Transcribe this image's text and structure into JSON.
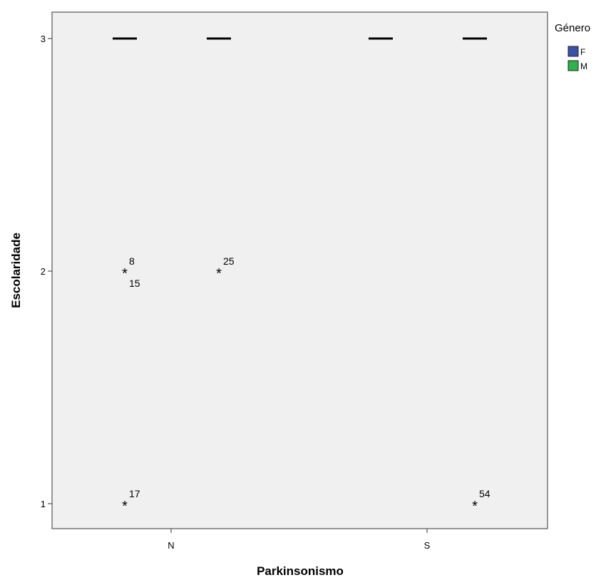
{
  "chart_data": {
    "type": "boxplot",
    "xlabel": "Parkinsonismo",
    "ylabel": "Escolaridade",
    "categories": [
      "N",
      "S"
    ],
    "yticks": [
      1,
      2,
      3
    ],
    "ylim": [
      0.9,
      3.12
    ],
    "grid": false,
    "legend": {
      "title": "Género",
      "position": "top-right",
      "entries": [
        {
          "name": "F",
          "color": "#3c52a8"
        },
        {
          "name": "M",
          "color": "#2eb24a"
        }
      ]
    },
    "groups": [
      {
        "category": "N",
        "series": "F",
        "median": 3,
        "outliers": [
          {
            "y": 2,
            "labels": [
              "8",
              "15"
            ]
          },
          {
            "y": 1,
            "labels": [
              "17"
            ]
          }
        ]
      },
      {
        "category": "N",
        "series": "M",
        "median": 3,
        "outliers": [
          {
            "y": 2,
            "labels": [
              "25"
            ]
          }
        ]
      },
      {
        "category": "S",
        "series": "F",
        "median": 3,
        "outliers": []
      },
      {
        "category": "S",
        "series": "M",
        "median": 3,
        "outliers": [
          {
            "y": 1,
            "labels": [
              "54"
            ]
          }
        ]
      }
    ]
  }
}
